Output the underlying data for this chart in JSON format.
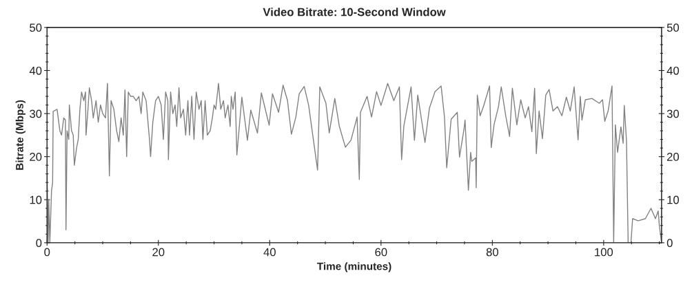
{
  "chart_data": {
    "type": "line",
    "title": "Video Bitrate: 10-Second Window",
    "xlabel": "Time (minutes)",
    "ylabel": "Bitrate (Mbps)",
    "xlim": [
      0,
      110.4
    ],
    "ylim": [
      0,
      50
    ],
    "y2lim": [
      0,
      50
    ],
    "xticks": [
      0,
      {
        "value": 5,
        "label": null
      },
      {
        "value": 10,
        "label": null
      },
      {
        "value": 15,
        "label": null
      },
      20,
      {
        "value": 25,
        "label": null
      },
      {
        "value": 30,
        "label": null
      },
      {
        "value": 35,
        "label": null
      },
      40,
      {
        "value": 45,
        "label": null
      },
      {
        "value": 50,
        "label": null
      },
      {
        "value": 55,
        "label": null
      },
      60,
      {
        "value": 65,
        "label": null
      },
      {
        "value": 70,
        "label": null
      },
      {
        "value": 75,
        "label": null
      },
      80,
      {
        "value": 85,
        "label": null
      },
      {
        "value": 90,
        "label": null
      },
      {
        "value": 95,
        "label": null
      },
      100,
      {
        "value": 105,
        "label": null
      },
      {
        "value": 110,
        "label": null
      }
    ],
    "yticks": [
      0,
      {
        "value": 2,
        "label": null
      },
      {
        "value": 4,
        "label": null
      },
      {
        "value": 6,
        "label": null
      },
      {
        "value": 8,
        "label": null
      },
      10,
      {
        "value": 12,
        "label": null
      },
      {
        "value": 14,
        "label": null
      },
      {
        "value": 16,
        "label": null
      },
      {
        "value": 18,
        "label": null
      },
      20,
      {
        "value": 22,
        "label": null
      },
      {
        "value": 24,
        "label": null
      },
      {
        "value": 26,
        "label": null
      },
      {
        "value": 28,
        "label": null
      },
      30,
      {
        "value": 32,
        "label": null
      },
      {
        "value": 34,
        "label": null
      },
      {
        "value": 36,
        "label": null
      },
      {
        "value": 38,
        "label": null
      },
      40,
      {
        "value": 42,
        "label": null
      },
      {
        "value": 44,
        "label": null
      },
      {
        "value": 46,
        "label": null
      },
      {
        "value": 48,
        "label": null
      },
      50
    ],
    "y2ticks": [
      0,
      {
        "value": 2,
        "label": null
      },
      {
        "value": 4,
        "label": null
      },
      {
        "value": 6,
        "label": null
      },
      {
        "value": 8,
        "label": null
      },
      10,
      {
        "value": 12,
        "label": null
      },
      {
        "value": 14,
        "label": null
      },
      {
        "value": 16,
        "label": null
      },
      {
        "value": 18,
        "label": null
      },
      20,
      {
        "value": 22,
        "label": null
      },
      {
        "value": 24,
        "label": null
      },
      {
        "value": 26,
        "label": null
      },
      {
        "value": 28,
        "label": null
      },
      30,
      {
        "value": 32,
        "label": null
      },
      {
        "value": 34,
        "label": null
      },
      {
        "value": 36,
        "label": null
      },
      {
        "value": 38,
        "label": null
      },
      40,
      {
        "value": 42,
        "label": null
      },
      {
        "value": 44,
        "label": null
      },
      {
        "value": 46,
        "label": null
      },
      {
        "value": 48,
        "label": null
      },
      50
    ],
    "grid": false,
    "legend": false,
    "marker": "none",
    "line_style": "solid",
    "series": [
      {
        "color": "#808080",
        "x": [
          0,
          0.2,
          0.3,
          0.5,
          0.8,
          1.0,
          1.1,
          1.8,
          2.3,
          2.6,
          3.0,
          3.3,
          3.4,
          3.6,
          3.9,
          4.0,
          4.4,
          4.7,
          4.9,
          5.3,
          5.6,
          5.9,
          6.2,
          6.6,
          6.9,
          7.0,
          7.3,
          7.6,
          8.0,
          8.3,
          8.8,
          9.2,
          9.6,
          10.0,
          10.5,
          10.85,
          11.2,
          11.5,
          12.0,
          12.5,
          12.9,
          13.3,
          13.7,
          14.0,
          14.3,
          14.6,
          15.0,
          15.5,
          16.0,
          16.5,
          16.9,
          17.2,
          17.8,
          18.4,
          18.6,
          19.0,
          19.5,
          20.0,
          20.5,
          20.9,
          21.3,
          21.7,
          21.8,
          22.2,
          22.6,
          23.0,
          23.3,
          23.7,
          24.0,
          24.5,
          24.9,
          25.3,
          25.6,
          26.0,
          26.4,
          26.8,
          27.3,
          27.7,
          28.0,
          28.4,
          28.8,
          29.3,
          29.7,
          30.0,
          30.3,
          30.8,
          31.2,
          31.7,
          32.0,
          32.5,
          32.9,
          33.1,
          33.4,
          33.8,
          34.1,
          35.0,
          36.0,
          36.6,
          37.8,
          38.5,
          39.9,
          40.5,
          41.6,
          42.4,
          43.2,
          43.9,
          44.7,
          45.3,
          46.2,
          47.0,
          47.8,
          48.6,
          49.0,
          50.1,
          50.7,
          51.7,
          52.5,
          53.6,
          54.6,
          55.7,
          56.1,
          56.3,
          57.5,
          58.3,
          59.2,
          60.0,
          61.2,
          62.3,
          63.3,
          63.7,
          64.1,
          65.4,
          66.0,
          66.6,
          67.9,
          68.7,
          69.7,
          70.8,
          71.4,
          71.8,
          72.6,
          73.7,
          74.1,
          74.9,
          75.1,
          75.7,
          76.1,
          76.3,
          77.0,
          77.1,
          77.3,
          77.8,
          78.4,
          79.5,
          79.8,
          80.3,
          81.1,
          81.6,
          82.4,
          83.1,
          83.6,
          84.4,
          85.1,
          85.9,
          86.5,
          87.1,
          87.6,
          87.9,
          88.4,
          89.0,
          89.6,
          90.2,
          90.9,
          91.7,
          92.5,
          93.3,
          94.0,
          94.7,
          95.4,
          95.8,
          96.1,
          96.7,
          97.9,
          99.2,
          99.8,
          100.2,
          100.8,
          101.5,
          101.8,
          102.1,
          102.5,
          103.1,
          103.5,
          103.7,
          104.1,
          104.4,
          104.9,
          105.2,
          106.2,
          107.5,
          108.5,
          109.3,
          109.8,
          110.0,
          110.4
        ],
        "values": [
          17,
          0,
          10,
          0,
          12,
          14,
          30.5,
          31,
          26,
          25,
          29,
          28.5,
          3,
          26,
          24,
          32,
          26,
          25,
          18,
          22,
          24,
          31,
          35,
          33,
          35,
          25,
          30,
          36,
          33,
          29,
          33,
          28,
          32,
          30,
          29,
          37,
          15.5,
          33,
          31,
          26,
          23.5,
          29,
          25,
          35.5,
          20,
          35,
          34,
          34,
          33,
          34,
          30,
          35,
          33,
          24,
          20,
          28,
          33,
          34,
          32,
          24,
          35,
          33,
          19.3,
          35,
          30,
          32,
          27,
          36,
          29,
          31,
          25,
          33,
          25,
          34,
          24,
          35,
          31,
          33,
          24,
          33,
          25,
          26,
          29,
          32,
          31,
          37,
          31,
          33,
          29,
          32,
          27,
          34,
          31,
          35,
          20.4,
          33.8,
          23.8,
          30.8,
          25.5,
          34.8,
          27.3,
          34.6,
          30.3,
          36.6,
          33,
          25.2,
          29.2,
          34.6,
          36.3,
          31.9,
          24.4,
          16.9,
          36.2,
          32.4,
          25.5,
          33.5,
          27.1,
          22.2,
          23.8,
          29.2,
          14.7,
          30.3,
          34,
          29.2,
          35.1,
          31.9,
          37,
          33,
          36.2,
          19.3,
          27.1,
          36.2,
          23.8,
          34.3,
          23.3,
          31.3,
          35.1,
          36.4,
          29.2,
          17.4,
          28.7,
          30.3,
          19.9,
          26.3,
          28.5,
          12.2,
          21,
          18.9,
          19.7,
          12.8,
          34.3,
          29.5,
          31.6,
          36.4,
          22.1,
          27.4,
          31.6,
          36.2,
          29.5,
          24.7,
          35.9,
          27.4,
          33.2,
          29,
          31.6,
          25.8,
          35.9,
          20.7,
          30.6,
          24.2,
          34.3,
          35.6,
          30.6,
          31.6,
          29.5,
          33.8,
          30.6,
          36.2,
          23.9,
          34,
          28.5,
          33.2,
          33.5,
          32.4,
          33.2,
          28.2,
          30.6,
          36.4,
          0,
          27.4,
          21,
          26.9,
          23.1,
          31.9,
          23.7,
          0,
          0,
          5.6,
          5.1,
          5.6,
          8,
          5.6,
          7.4,
          4,
          0
        ]
      }
    ]
  }
}
